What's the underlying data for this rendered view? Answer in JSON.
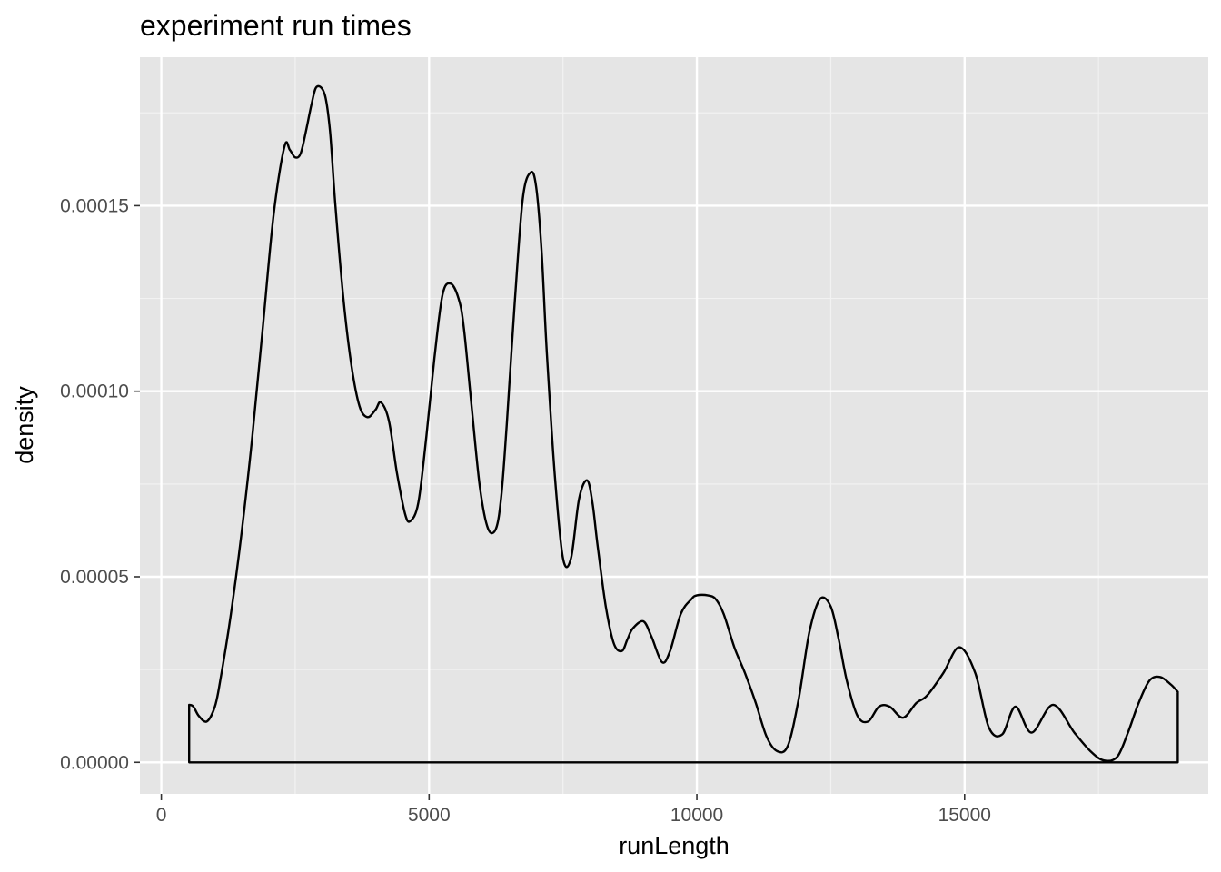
{
  "chart_data": {
    "type": "area",
    "title": "experiment run times",
    "xlabel": "runLength",
    "ylabel": "density",
    "xlim": [
      -400,
      19550
    ],
    "ylim": [
      -8.5e-06,
      0.00019
    ],
    "x_ticks": [
      0,
      5000,
      10000,
      15000
    ],
    "x_tick_labels": [
      "0",
      "5000",
      "10000",
      "15000"
    ],
    "y_ticks": [
      0,
      5e-05,
      0.0001,
      0.00015
    ],
    "y_tick_labels": [
      "0.00000",
      "0.00005",
      "0.00010",
      "0.00015"
    ],
    "grid": true,
    "legend": "none",
    "series": [
      {
        "x": [
          520,
          600,
          700,
          850,
          1000,
          1100,
          1300,
          1500,
          1700,
          1900,
          2100,
          2300,
          2400,
          2500,
          2600,
          2700,
          2800,
          2900,
          3050,
          3150,
          3250,
          3400,
          3550,
          3700,
          3850,
          4000,
          4100,
          4250,
          4400,
          4550,
          4650,
          4800,
          4950,
          5100,
          5250,
          5400,
          5550,
          5650,
          5800,
          5950,
          6100,
          6250,
          6350,
          6450,
          6600,
          6750,
          6900,
          7000,
          7100,
          7200,
          7350,
          7500,
          7650,
          7800,
          7950,
          8050,
          8150,
          8300,
          8450,
          8600,
          8700,
          8800,
          9000,
          9150,
          9350,
          9500,
          9700,
          9900,
          10000,
          10200,
          10350,
          10500,
          10700,
          10900,
          11100,
          11300,
          11500,
          11700,
          11900,
          12100,
          12300,
          12500,
          12650,
          12800,
          13000,
          13200,
          13400,
          13600,
          13850,
          14100,
          14300,
          14600,
          14900,
          15200,
          15450,
          15700,
          15950,
          16250,
          16650,
          17050,
          17350,
          17600,
          17850,
          18050,
          18250,
          18450,
          18650,
          18850,
          18980
        ],
        "values": [
          1.55e-05,
          1.5e-05,
          1.25e-05,
          1.1e-05,
          1.5e-05,
          2.2e-05,
          4e-05,
          6.2e-05,
          8.8e-05,
          0.000118,
          0.000148,
          0.000166,
          0.000165,
          0.000163,
          0.000164,
          0.00017,
          0.000177,
          0.000182,
          0.00018,
          0.00017,
          0.00015,
          0.000125,
          0.000107,
          9.6e-05,
          9.3e-05,
          9.5e-05,
          9.7e-05,
          9.2e-05,
          7.8e-05,
          6.7e-05,
          6.5e-05,
          7e-05,
          8.8e-05,
          0.000109,
          0.000126,
          0.000129,
          0.000125,
          0.000117,
          9.5e-05,
          7.4e-05,
          6.3e-05,
          6.3e-05,
          7.2e-05,
          9.1e-05,
          0.000124,
          0.000152,
          0.000159,
          0.000155,
          0.000138,
          0.00011,
          7.7e-05,
          5.5e-05,
          5.5e-05,
          7.1e-05,
          7.6e-05,
          7e-05,
          5.8e-05,
          4.2e-05,
          3.2e-05,
          3e-05,
          3.3e-05,
          3.6e-05,
          3.8e-05,
          3.4e-05,
          2.7e-05,
          3e-05,
          4e-05,
          4.4e-05,
          4.5e-05,
          4.5e-05,
          4.4e-05,
          4e-05,
          3.1e-05,
          2.4e-05,
          1.6e-05,
          7e-06,
          3e-06,
          4.5e-06,
          1.7e-05,
          3.5e-05,
          4.4e-05,
          4.2e-05,
          3.3e-05,
          2.2e-05,
          1.25e-05,
          1.1e-05,
          1.5e-05,
          1.5e-05,
          1.2e-05,
          1.6e-05,
          1.8e-05,
          2.4e-05,
          3.1e-05,
          2.4e-05,
          9.5e-06,
          7.5e-06,
          1.5e-05,
          8e-06,
          1.55e-05,
          8e-06,
          3e-06,
          5e-07,
          1.5e-06,
          8e-06,
          1.6e-05,
          2.2e-05,
          2.3e-05,
          2.1e-05,
          1.9e-05
        ]
      }
    ]
  }
}
